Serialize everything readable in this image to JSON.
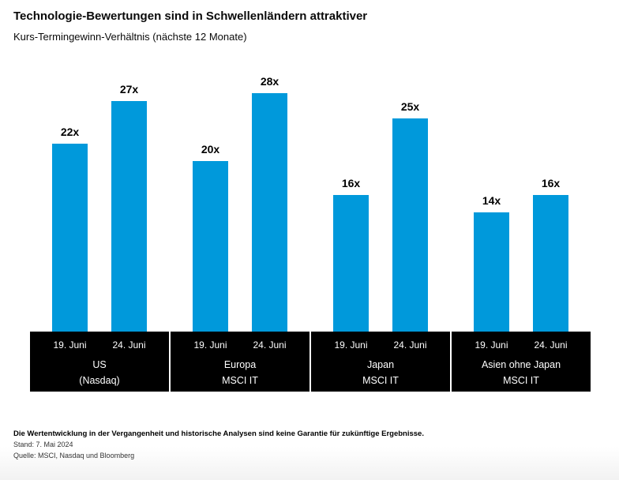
{
  "header": {
    "title": "Technologie-Bewertungen sind in Schwellenländern attraktiver",
    "subtitle": "Kurs-Termingewinn-Verhältnis (nächste 12 Monate)"
  },
  "chart_data": {
    "type": "bar",
    "title": "Technologie-Bewertungen sind in Schwellenländern attraktiver",
    "subtitle": "Kurs-Termingewinn-Verhältnis (nächste 12 Monate)",
    "unit_suffix": "x",
    "bar_color": "#0099DB",
    "label_band_color": "#000000",
    "label_band_text_color": "#ffffff",
    "grid": false,
    "y_axis_visible": false,
    "ylim": [
      0,
      30
    ],
    "categories": [
      "19. Juni",
      "24. Juni"
    ],
    "groups": [
      {
        "label_lines": [
          "US",
          "(Nasdaq)"
        ],
        "values": [
          22,
          27
        ]
      },
      {
        "label_lines": [
          "Europa",
          "MSCI IT"
        ],
        "values": [
          20,
          28
        ]
      },
      {
        "label_lines": [
          "Japan",
          "MSCI IT"
        ],
        "values": [
          16,
          25
        ]
      },
      {
        "label_lines": [
          "Asien ohne Japan",
          "MSCI IT"
        ],
        "values": [
          14,
          16
        ]
      }
    ]
  },
  "footer": {
    "disclaimer": "Die Wertentwicklung in der Vergangenheit und historische Analysen sind keine Garantie für zukünftige Ergebnisse.",
    "stand": "Stand: 7. Mai 2024",
    "quelle": "Quelle: MSCI, Nasdaq und Bloomberg"
  }
}
